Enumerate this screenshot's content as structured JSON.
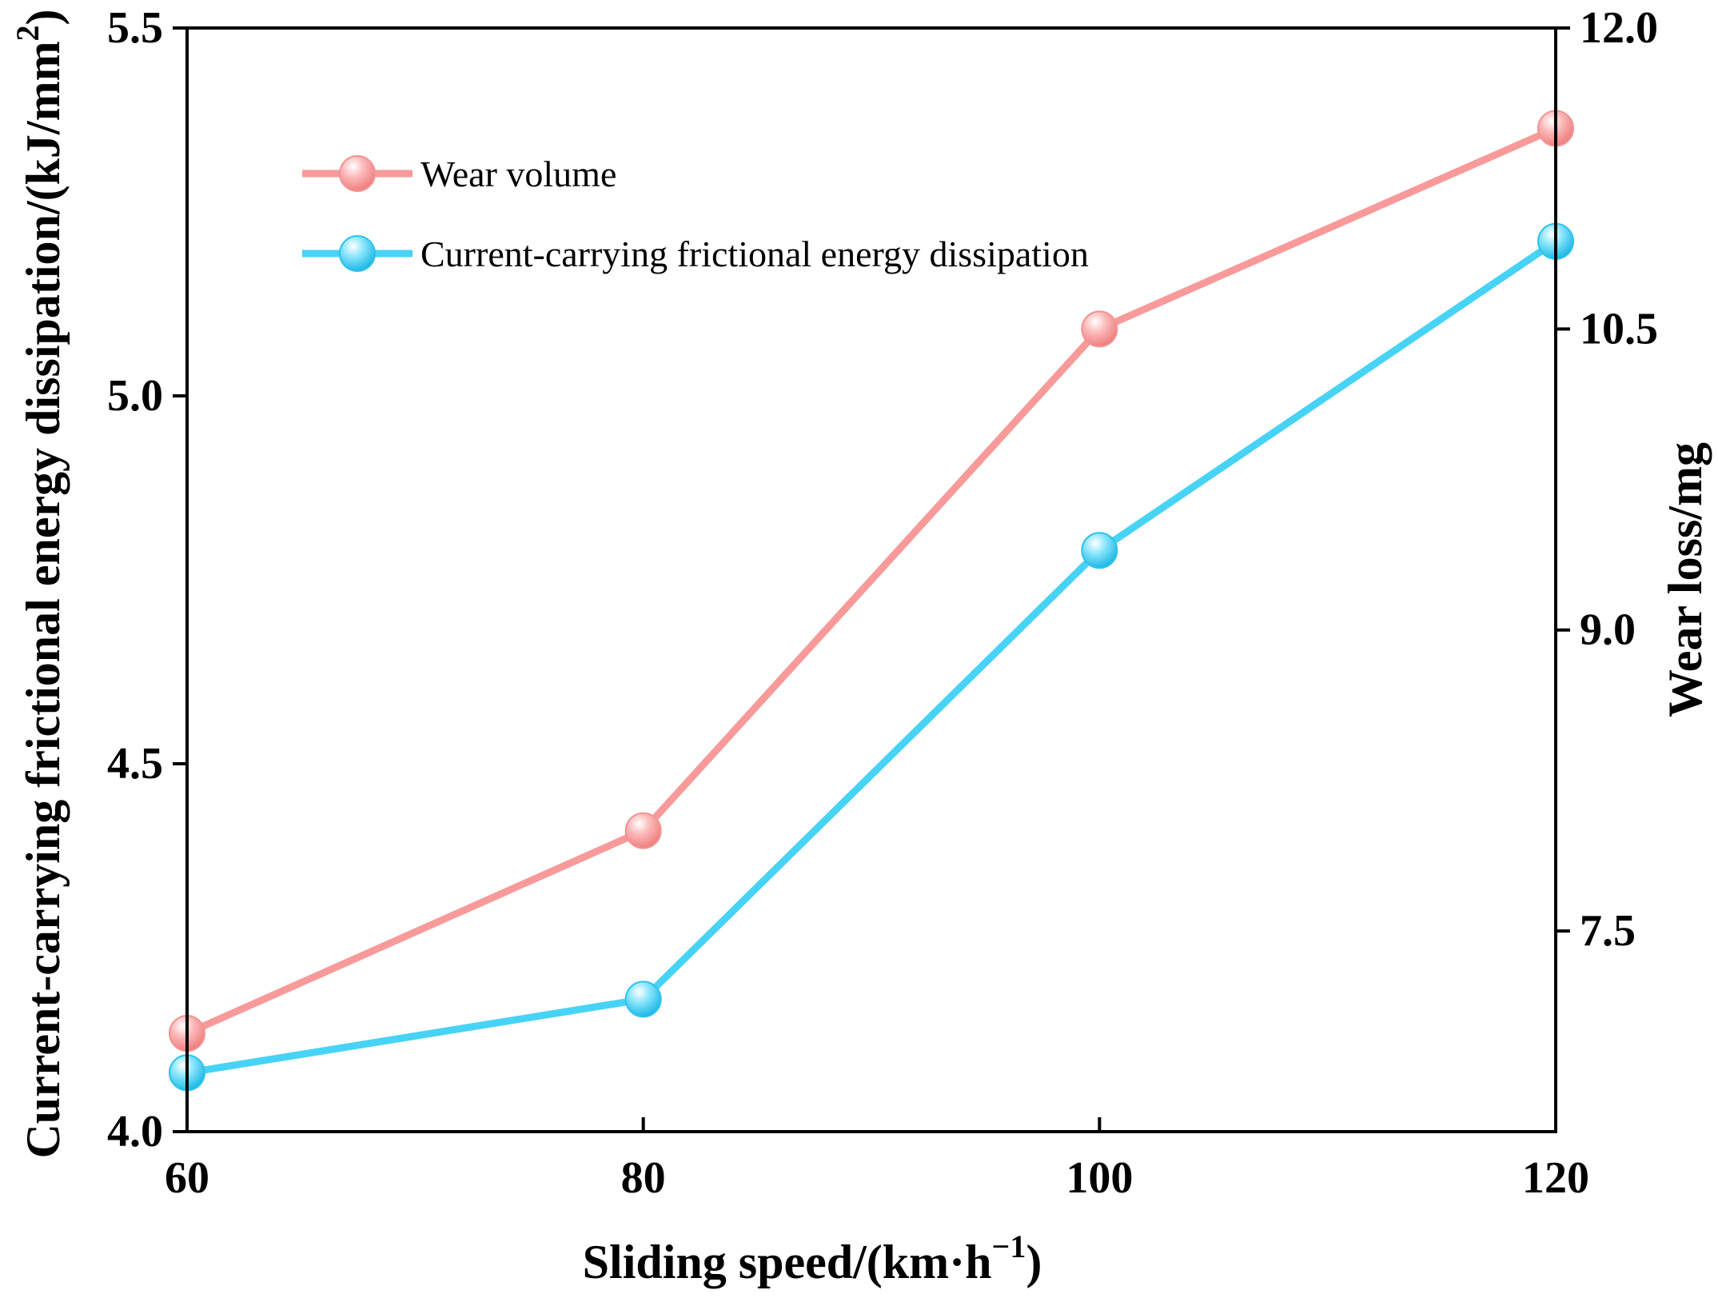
{
  "chart_data": {
    "type": "line",
    "x": [
      60,
      80,
      100,
      120
    ],
    "xlabel": "Sliding speed/(km·h",
    "xlabel_sup": "−1",
    "xlabel_close": ")",
    "ylabel_left": "Current-carrying frictional energy dissipation/(kJ/mm",
    "ylabel_left_sup": "2",
    "ylabel_left_close": ")",
    "ylabel_right": "Wear loss/mg",
    "xlim": [
      60,
      120
    ],
    "ylim_left": [
      4.0,
      5.5
    ],
    "ylim_right": [
      6.5,
      12.0
    ],
    "x_ticks": [
      "60",
      "80",
      "100",
      "120"
    ],
    "y_left_ticks": [
      "4.0",
      "4.5",
      "5.0",
      "5.5"
    ],
    "y_right_ticks": [
      "7.5",
      "9.0",
      "10.5",
      "12.0"
    ],
    "series": [
      {
        "name": "Wear volume",
        "axis": "right",
        "color": "#f89a9a",
        "values": [
          6.99,
          8.0,
          10.5,
          11.5
        ]
      },
      {
        "name": "Current-carrying frictional energy dissipation",
        "axis": "left",
        "color": "#47d3f5",
        "values": [
          4.08,
          4.18,
          4.79,
          5.21
        ]
      }
    ],
    "legend_position": "top-left",
    "grid": false
  }
}
